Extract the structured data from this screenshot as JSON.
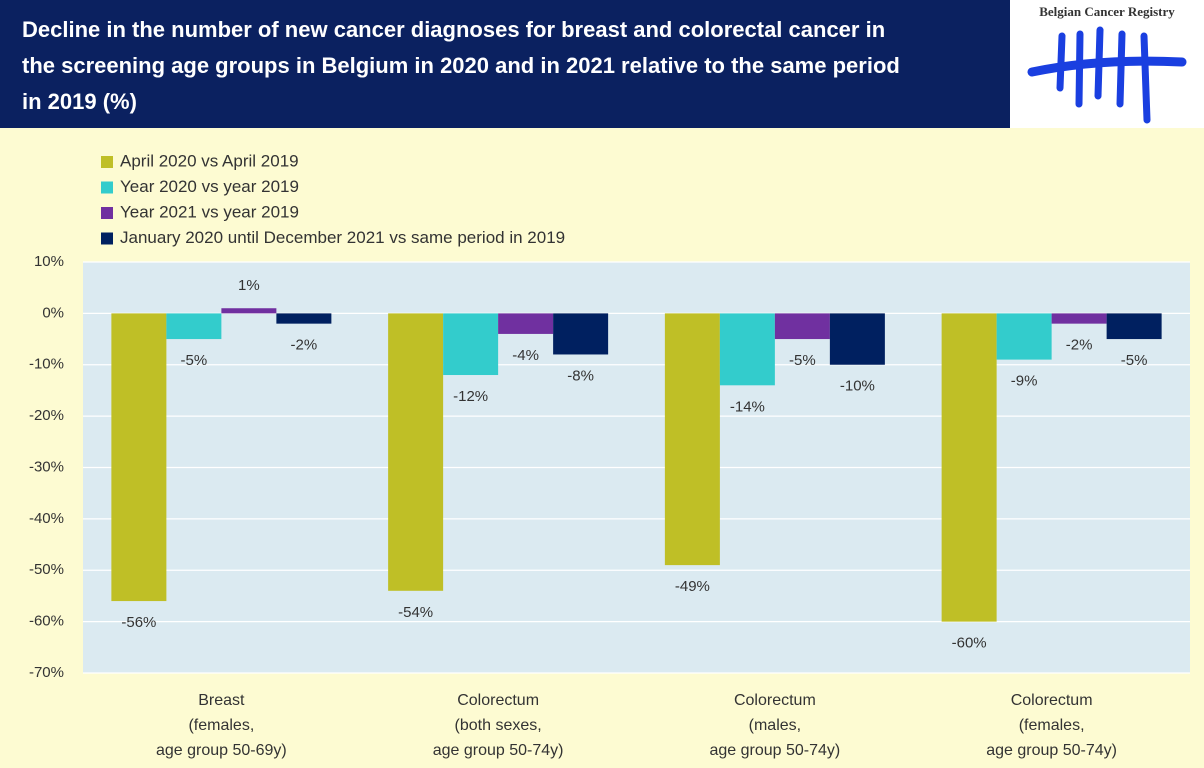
{
  "logo": {
    "text": "Belgian Cancer Registry"
  },
  "chart_data": {
    "type": "bar",
    "title": "Decline in the number of new cancer diagnoses for breast and colorectal cancer in the screening age groups in Belgium in 2020 and in 2021 relative to the same period in 2019 (%)",
    "categories": [
      [
        "Breast",
        "(females,",
        "age group 50-69y)"
      ],
      [
        "Colorectum",
        "(both sexes,",
        "age group 50-74y)"
      ],
      [
        "Colorectum",
        "(males,",
        "age group 50-74y)"
      ],
      [
        "Colorectum",
        "(females,",
        "age group 50-74y)"
      ]
    ],
    "series": [
      {
        "name": "April 2020 vs April 2019",
        "color": "#bfbf26",
        "values": [
          -56,
          -54,
          -49,
          -60
        ],
        "value_labels": [
          "-56%",
          "-54%",
          "-49%",
          "-60%"
        ]
      },
      {
        "name": "Year 2020 vs year 2019",
        "color": "#33cccc",
        "values": [
          -5,
          -12,
          -14,
          -9
        ],
        "value_labels": [
          "-5%",
          "-12%",
          "-14%",
          "-9%"
        ]
      },
      {
        "name": "Year 2021 vs year 2019",
        "color": "#7030a0",
        "values": [
          1,
          -4,
          -5,
          -2
        ],
        "value_labels": [
          "1%",
          "-4%",
          "-5%",
          "-2%"
        ]
      },
      {
        "name": "January 2020 until December 2021 vs same period in 2019",
        "color": "#002060",
        "values": [
          -2,
          -8,
          -10,
          -5
        ],
        "value_labels": [
          "-2%",
          "-8%",
          "-10%",
          "-5%"
        ]
      }
    ],
    "ylim": [
      -70,
      10
    ],
    "yticks": [
      {
        "value": 10,
        "label": "10%"
      },
      {
        "value": 0,
        "label": "0%"
      },
      {
        "value": -10,
        "label": "-10%"
      },
      {
        "value": -20,
        "label": "-20%"
      },
      {
        "value": -30,
        "label": "-30%"
      },
      {
        "value": -40,
        "label": "-40%"
      },
      {
        "value": -50,
        "label": "-50%"
      },
      {
        "value": -60,
        "label": "-60%"
      },
      {
        "value": -70,
        "label": "-70%"
      }
    ],
    "grid": true
  }
}
